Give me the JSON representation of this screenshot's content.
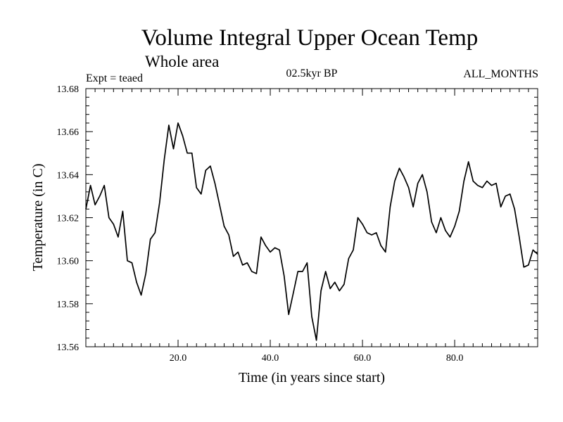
{
  "chart_data": {
    "type": "line",
    "title": "Volume Integral Upper Ocean Temp",
    "subtitle": "Whole area",
    "annotations": {
      "experiment": "Expt = teaed",
      "period": "02.5kyr BP",
      "months": "ALL_MONTHS"
    },
    "xlabel": "Time (in years since start)",
    "ylabel": "Temperature (in C)",
    "xlim": [
      0,
      98
    ],
    "ylim": [
      13.56,
      13.68
    ],
    "x_ticks": [
      20,
      40,
      60,
      80
    ],
    "x_tick_labels": [
      "20.0",
      "40.0",
      "60.0",
      "80.0"
    ],
    "y_ticks": [
      13.56,
      13.58,
      13.6,
      13.62,
      13.64,
      13.66,
      13.68
    ],
    "y_tick_labels": [
      "13.56",
      "13.58",
      "13.60",
      "13.62",
      "13.64",
      "13.66",
      "13.68"
    ],
    "grid": false,
    "series": [
      {
        "name": "Volume Integral Upper Ocean Temp",
        "color": "#000000",
        "x": [
          0,
          1,
          2,
          3,
          4,
          5,
          6,
          7,
          8,
          9,
          10,
          11,
          12,
          13,
          14,
          15,
          16,
          17,
          18,
          19,
          20,
          21,
          22,
          23,
          24,
          25,
          26,
          27,
          28,
          29,
          30,
          31,
          32,
          33,
          34,
          35,
          36,
          37,
          38,
          39,
          40,
          41,
          42,
          43,
          44,
          45,
          46,
          47,
          48,
          49,
          50,
          51,
          52,
          53,
          54,
          55,
          56,
          57,
          58,
          59,
          60,
          61,
          62,
          63,
          64,
          65,
          66,
          67,
          68,
          69,
          70,
          71,
          72,
          73,
          74,
          75,
          76,
          77,
          78,
          79,
          80,
          81,
          82,
          83,
          84,
          85,
          86,
          87,
          88,
          89,
          90,
          91,
          92,
          93,
          94,
          95,
          96,
          97,
          98
        ],
        "values": [
          13.624,
          13.635,
          13.626,
          13.63,
          13.635,
          13.62,
          13.617,
          13.611,
          13.623,
          13.6,
          13.599,
          13.59,
          13.584,
          13.594,
          13.61,
          13.613,
          13.627,
          13.647,
          13.663,
          13.652,
          13.664,
          13.658,
          13.65,
          13.65,
          13.634,
          13.631,
          13.642,
          13.644,
          13.636,
          13.626,
          13.616,
          13.612,
          13.602,
          13.604,
          13.598,
          13.599,
          13.595,
          13.594,
          13.611,
          13.607,
          13.604,
          13.606,
          13.605,
          13.593,
          13.575,
          13.585,
          13.595,
          13.595,
          13.599,
          13.574,
          13.563,
          13.586,
          13.595,
          13.587,
          13.59,
          13.586,
          13.589,
          13.601,
          13.605,
          13.62,
          13.617,
          13.613,
          13.612,
          13.613,
          13.607,
          13.604,
          13.625,
          13.637,
          13.643,
          13.639,
          13.634,
          13.625,
          13.636,
          13.64,
          13.632,
          13.618,
          13.613,
          13.62,
          13.614,
          13.611,
          13.616,
          13.623,
          13.637,
          13.646,
          13.637,
          13.635,
          13.634,
          13.637,
          13.635,
          13.636,
          13.625,
          13.63,
          13.631,
          13.624,
          13.611,
          13.597,
          13.598,
          13.605,
          13.603
        ]
      }
    ]
  }
}
